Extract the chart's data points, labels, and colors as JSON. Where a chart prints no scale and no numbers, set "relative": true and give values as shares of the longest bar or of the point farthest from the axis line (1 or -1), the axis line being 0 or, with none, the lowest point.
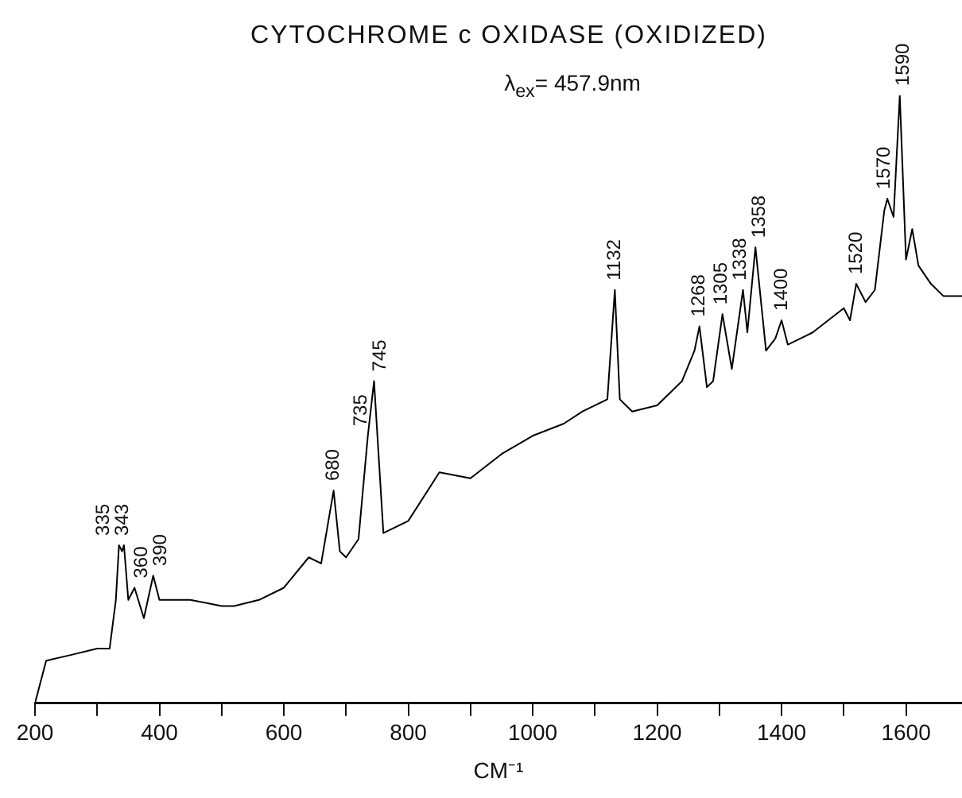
{
  "chart_data": {
    "type": "line",
    "title": "CYTOCHROME c OXIDASE (OXIDIZED)",
    "subtitle": "λ$_{ex}$= 457.9nm",
    "xlabel": "CM⁻¹",
    "relative": true,
    "color": "#000000",
    "legend": false,
    "grid": false,
    "marker": "none",
    "x": [
      200,
      218,
      260,
      300,
      320,
      330,
      335,
      340,
      343,
      350,
      360,
      375,
      390,
      400,
      450,
      500,
      520,
      560,
      600,
      640,
      660,
      680,
      690,
      700,
      720,
      735,
      745,
      760,
      800,
      850,
      900,
      950,
      1000,
      1050,
      1080,
      1120,
      1132,
      1140,
      1160,
      1200,
      1240,
      1260,
      1268,
      1280,
      1290,
      1305,
      1320,
      1338,
      1345,
      1358,
      1375,
      1390,
      1400,
      1410,
      1450,
      1500,
      1510,
      1520,
      1535,
      1550,
      1565,
      1570,
      1580,
      1590,
      1600,
      1610,
      1620,
      1640,
      1660,
      1690
    ],
    "values": [
      0,
      0.07,
      0.08,
      0.09,
      0.09,
      0.17,
      0.26,
      0.25,
      0.26,
      0.17,
      0.19,
      0.14,
      0.21,
      0.17,
      0.17,
      0.16,
      0.16,
      0.17,
      0.19,
      0.24,
      0.23,
      0.35,
      0.25,
      0.24,
      0.27,
      0.44,
      0.53,
      0.28,
      0.3,
      0.38,
      0.37,
      0.41,
      0.44,
      0.46,
      0.48,
      0.5,
      0.68,
      0.5,
      0.48,
      0.49,
      0.53,
      0.58,
      0.62,
      0.52,
      0.53,
      0.64,
      0.55,
      0.68,
      0.61,
      0.75,
      0.58,
      0.6,
      0.63,
      0.59,
      0.61,
      0.65,
      0.63,
      0.69,
      0.66,
      0.68,
      0.81,
      0.83,
      0.8,
      1,
      0.73,
      0.78,
      0.72,
      0.69,
      0.67,
      0.67
    ],
    "xlim": [
      200,
      1690
    ],
    "xticks": [
      200,
      {
        "value": 300,
        "label": null
      },
      400,
      {
        "value": 500,
        "label": null
      },
      600,
      {
        "value": 700,
        "label": null
      },
      800,
      {
        "value": 900,
        "label": null
      },
      1000,
      {
        "value": 1100,
        "label": null
      },
      1200,
      {
        "value": 1300,
        "label": null
      },
      1400,
      {
        "value": 1500,
        "label": null
      },
      1600
    ],
    "annotations": [
      {
        "text": "335",
        "x": 335,
        "y": 0.26
      },
      {
        "text": "343",
        "x": 343,
        "y": 0.26
      },
      {
        "text": "360",
        "x": 360,
        "y": 0.19
      },
      {
        "text": "390",
        "x": 390,
        "y": 0.21
      },
      {
        "text": "680",
        "x": 680,
        "y": 0.35
      },
      {
        "text": "735",
        "x": 735,
        "y": 0.44
      },
      {
        "text": "745",
        "x": 745,
        "y": 0.53
      },
      {
        "text": "1132",
        "x": 1132,
        "y": 0.68
      },
      {
        "text": "1268",
        "x": 1268,
        "y": 0.62
      },
      {
        "text": "1305",
        "x": 1305,
        "y": 0.64
      },
      {
        "text": "1338",
        "x": 1338,
        "y": 0.68
      },
      {
        "text": "1358",
        "x": 1358,
        "y": 0.75
      },
      {
        "text": "1400",
        "x": 1400,
        "y": 0.63
      },
      {
        "text": "1520",
        "x": 1520,
        "y": 0.69
      },
      {
        "text": "1570",
        "x": 1570,
        "y": 0.83
      },
      {
        "text": "1590",
        "x": 1590,
        "y": 1
      }
    ]
  }
}
